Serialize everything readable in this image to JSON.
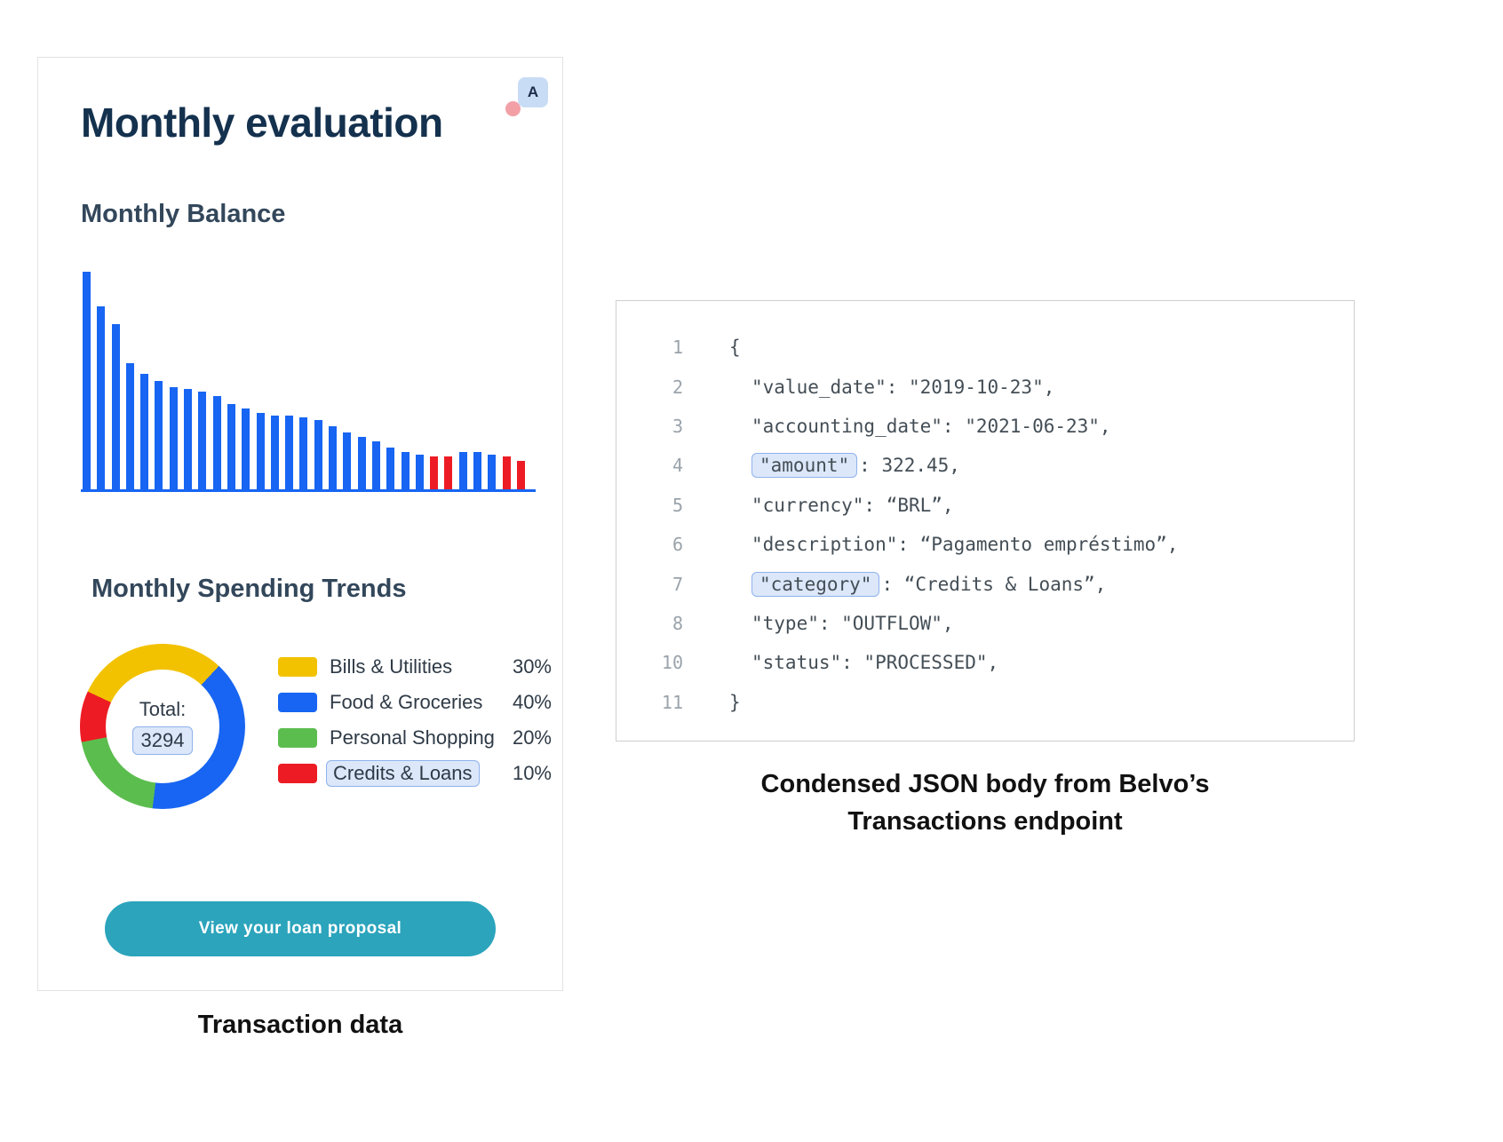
{
  "card": {
    "title": "Monthly evaluation",
    "avatar_label": "A",
    "balance_title": "Monthly Balance",
    "spending_title": "Monthly Spending Trends",
    "donut": {
      "total_label": "Total:",
      "total_value": "3294"
    },
    "legend": [
      {
        "label": "Bills & Utilities",
        "value": "30%",
        "color": "#F2C200",
        "highlighted": false
      },
      {
        "label": "Food & Groceries",
        "value": "40%",
        "color": "#1765F2",
        "highlighted": false
      },
      {
        "label": "Personal Shopping",
        "value": "20%",
        "color": "#5CBD4F",
        "highlighted": false
      },
      {
        "label": "Credits & Loans",
        "value": "10%",
        "color": "#ED1C24",
        "highlighted": true
      }
    ],
    "button_label": "View your loan proposal",
    "caption": "Transaction data"
  },
  "code_panel": {
    "caption": "Condensed JSON body from Belvo’s Transactions endpoint",
    "lines": [
      {
        "num": "1",
        "indent": 0,
        "segments": [
          {
            "text": "{",
            "hl": false
          }
        ]
      },
      {
        "num": "2",
        "indent": 1,
        "segments": [
          {
            "text": "\"value_date\": \"2019-10-23\",",
            "hl": false
          }
        ]
      },
      {
        "num": "3",
        "indent": 1,
        "segments": [
          {
            "text": "\"accounting_date\": \"2021-06-23\",",
            "hl": false
          }
        ]
      },
      {
        "num": "4",
        "indent": 1,
        "segments": [
          {
            "text": "\"amount\"",
            "hl": true
          },
          {
            "text": ": 322.45,",
            "hl": false
          }
        ]
      },
      {
        "num": "5",
        "indent": 1,
        "segments": [
          {
            "text": "\"currency\": “BRL”,",
            "hl": false
          }
        ]
      },
      {
        "num": "6",
        "indent": 1,
        "segments": [
          {
            "text": "\"description\": “Pagamento empréstimo”,",
            "hl": false
          }
        ]
      },
      {
        "num": "7",
        "indent": 1,
        "segments": [
          {
            "text": "\"category\"",
            "hl": true
          },
          {
            "text": ": “Credits & Loans”,",
            "hl": false
          }
        ]
      },
      {
        "num": "8",
        "indent": 1,
        "segments": [
          {
            "text": "\"type\": \"OUTFLOW\",",
            "hl": false
          }
        ]
      },
      {
        "num": "10",
        "indent": 1,
        "segments": [
          {
            "text": "\"status\": \"PROCESSED\",",
            "hl": false
          }
        ]
      },
      {
        "num": "11",
        "indent": 0,
        "segments": [
          {
            "text": "}",
            "hl": false
          }
        ]
      }
    ]
  },
  "colors": {
    "bar_blue": "#1765F2",
    "bar_red": "#ED1C24",
    "button_teal": "#2BA4BC",
    "highlight_bg": "#DCE7FA",
    "highlight_border": "#8FB2EC"
  },
  "chart_data": [
    {
      "type": "bar",
      "title": "Monthly Balance",
      "values": [
        100,
        84,
        76,
        58,
        53,
        50,
        47,
        46,
        45,
        43,
        39,
        37,
        35,
        34,
        34,
        33,
        32,
        29,
        26,
        24,
        22,
        19,
        17,
        16,
        15,
        15,
        17,
        17,
        16,
        15,
        13
      ],
      "colors": [
        "#1765F2",
        "#1765F2",
        "#1765F2",
        "#1765F2",
        "#1765F2",
        "#1765F2",
        "#1765F2",
        "#1765F2",
        "#1765F2",
        "#1765F2",
        "#1765F2",
        "#1765F2",
        "#1765F2",
        "#1765F2",
        "#1765F2",
        "#1765F2",
        "#1765F2",
        "#1765F2",
        "#1765F2",
        "#1765F2",
        "#1765F2",
        "#1765F2",
        "#1765F2",
        "#1765F2",
        "#ED1C24",
        "#ED1C24",
        "#1765F2",
        "#1765F2",
        "#1765F2",
        "#ED1C24",
        "#ED1C24"
      ],
      "xlabel": "",
      "ylabel": "",
      "grid": false,
      "ylim": [
        0,
        100
      ]
    },
    {
      "type": "pie",
      "title": "Monthly Spending Trends",
      "categories": [
        "Bills & Utilities",
        "Food & Groceries",
        "Personal Shopping",
        "Credits & Loans"
      ],
      "values": [
        30,
        40,
        20,
        10
      ],
      "colors": [
        "#F2C200",
        "#1765F2",
        "#5CBD4F",
        "#ED1C24"
      ],
      "donut": true,
      "start_angle_deg": -65,
      "center_label": "Total:",
      "center_value": "3294",
      "legend_position": "right"
    }
  ]
}
